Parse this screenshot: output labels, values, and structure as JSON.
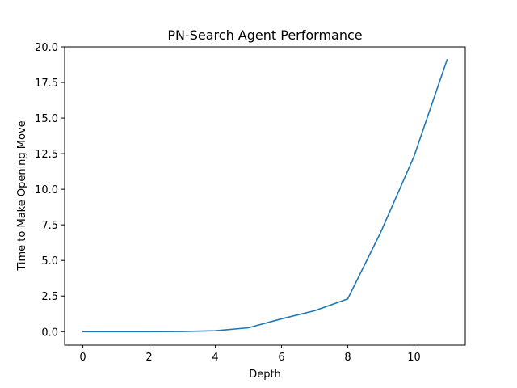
{
  "chart_data": {
    "type": "line",
    "title": "PN-Search Agent Performance",
    "xlabel": "Depth",
    "ylabel": "Time to Make Opening Move",
    "xlim": [
      -0.55,
      11.55
    ],
    "ylim": [
      -0.95,
      20.0
    ],
    "xticks": [
      0,
      2,
      4,
      6,
      8,
      10
    ],
    "xtick_labels": [
      "0",
      "2",
      "4",
      "6",
      "8",
      "10"
    ],
    "yticks": [
      0,
      2.5,
      5,
      7.5,
      10,
      12.5,
      15,
      17.5,
      20
    ],
    "ytick_labels": [
      "0.0",
      "2.5",
      "5.0",
      "7.5",
      "10.0",
      "12.5",
      "15.0",
      "17.5",
      "20.0"
    ],
    "grid": false,
    "legend": "none",
    "series": [
      {
        "color": "#1f77b4",
        "x": [
          0,
          1,
          2,
          3,
          4,
          5,
          6,
          7,
          8,
          9,
          10,
          11
        ],
        "y": [
          0.0,
          0.0,
          0.0,
          0.01,
          0.06,
          0.27,
          0.9,
          1.47,
          2.3,
          7.0,
          12.3,
          19.1
        ]
      }
    ]
  }
}
